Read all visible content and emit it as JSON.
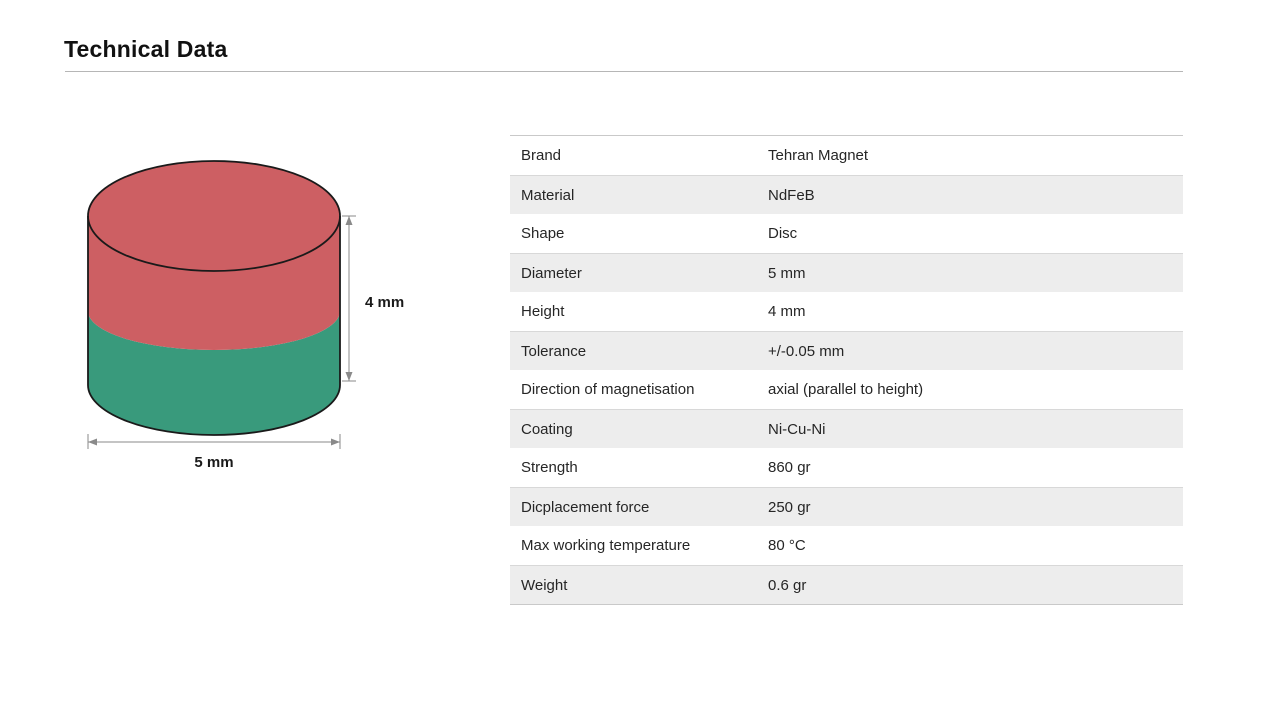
{
  "page": {
    "title": "Technical Data"
  },
  "diagram": {
    "name": "disc-magnet-dimensions",
    "height_label": "4 mm",
    "diameter_label": "5 mm",
    "colors": {
      "north_pole": "#cd5f63",
      "south_pole": "#399a7c",
      "outline": "#1a1a1a",
      "dimension": "#8a8a8a"
    }
  },
  "table": {
    "rows": [
      {
        "label": "Brand",
        "value": "Tehran Magnet"
      },
      {
        "label": "Material",
        "value": "NdFeB"
      },
      {
        "label": "Shape",
        "value": "Disc"
      },
      {
        "label": "Diameter",
        "value": "5 mm"
      },
      {
        "label": "Height",
        "value": "4 mm"
      },
      {
        "label": "Tolerance",
        "value": "+/-0.05 mm"
      },
      {
        "label": "Direction of magnetisation",
        "value": "axial (parallel to height)"
      },
      {
        "label": "Coating",
        "value": "Ni-Cu-Ni"
      },
      {
        "label": "Strength",
        "value": "860 gr"
      },
      {
        "label": "Dicplacement force",
        "value": "250 gr"
      },
      {
        "label": "Max working temperature",
        "value": "80 °C"
      },
      {
        "label": "Weight",
        "value": "0.6 gr"
      }
    ]
  }
}
